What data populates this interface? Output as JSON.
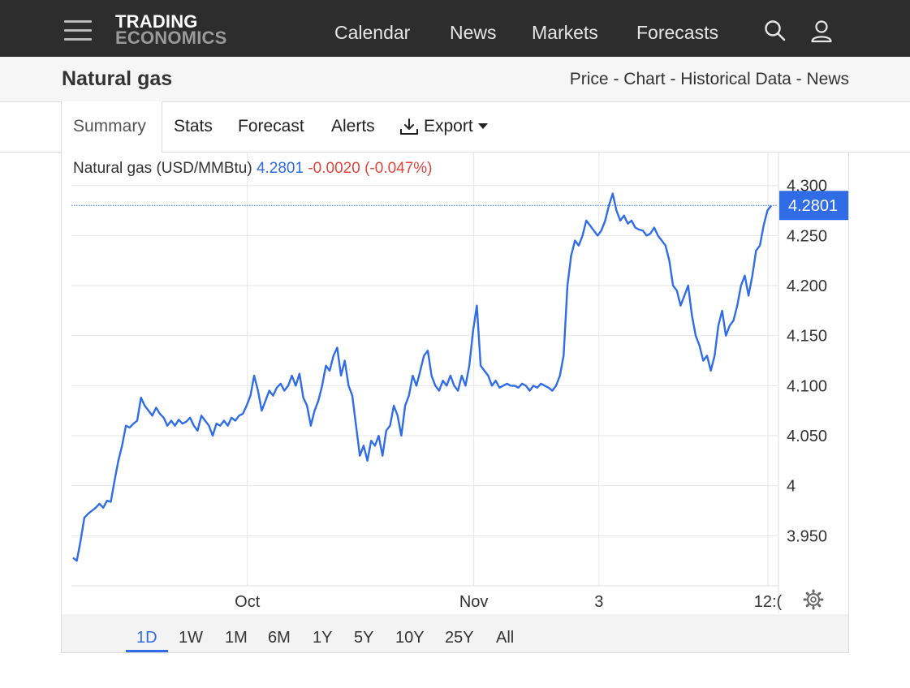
{
  "nav": {
    "logo_line1": "TRADING",
    "logo_line2": "ECONOMICS",
    "links": [
      "Calendar",
      "News",
      "Markets",
      "Forecasts"
    ],
    "icons": [
      "menu-icon",
      "search-icon",
      "user-icon"
    ]
  },
  "header": {
    "title": "Natural gas",
    "breadcrumbs": "Price - Chart - Historical Data - News"
  },
  "tabs": {
    "summary": "Summary",
    "stats": "Stats",
    "forecast": "Forecast",
    "alerts": "Alerts",
    "export": "Export",
    "active": "Summary"
  },
  "legend": {
    "name": "Natural gas (USD/MMBtu)",
    "price": "4.2801",
    "change": "-0.0020 (-0.047%)"
  },
  "ranges": {
    "items": [
      "1D",
      "1W",
      "1M",
      "6M",
      "1Y",
      "5Y",
      "10Y",
      "25Y",
      "All"
    ],
    "active": "1D"
  },
  "colors": {
    "line": "#2f6ce5",
    "negative": "#e0453c",
    "nav_bg": "#2d2d2d"
  },
  "chart_data": {
    "type": "line",
    "title": "",
    "series": [
      {
        "name": "Natural gas (USD/MMBtu)",
        "values": [
          3.928,
          3.925,
          3.945,
          3.968,
          3.972,
          3.975,
          3.978,
          3.982,
          3.978,
          3.985,
          3.984,
          4.005,
          4.025,
          4.04,
          4.06,
          4.058,
          4.062,
          4.065,
          4.088,
          4.08,
          4.075,
          4.07,
          4.078,
          4.072,
          4.068,
          4.06,
          4.065,
          4.06,
          4.066,
          4.062,
          4.064,
          4.068,
          4.06,
          4.055,
          4.07,
          4.065,
          4.06,
          4.05,
          4.062,
          4.06,
          4.065,
          4.06,
          4.068,
          4.065,
          4.07,
          4.072,
          4.08,
          4.09,
          4.11,
          4.095,
          4.075,
          4.085,
          4.095,
          4.09,
          4.098,
          4.102,
          4.095,
          4.1,
          4.11,
          4.1,
          4.112,
          4.088,
          4.08,
          4.06,
          4.075,
          4.085,
          4.1,
          4.12,
          4.115,
          4.13,
          4.138,
          4.11,
          4.125,
          4.1,
          4.09,
          4.06,
          4.03,
          4.04,
          4.025,
          4.045,
          4.04,
          4.05,
          4.03,
          4.055,
          4.06,
          4.08,
          4.07,
          4.05,
          4.08,
          4.09,
          4.11,
          4.1,
          4.115,
          4.13,
          4.135,
          4.11,
          4.1,
          4.095,
          4.105,
          4.1,
          4.11,
          4.1,
          4.095,
          4.11,
          4.1,
          4.12,
          4.155,
          4.18,
          4.12,
          4.115,
          4.11,
          4.1,
          4.105,
          4.098,
          4.1,
          4.102,
          4.1,
          4.1,
          4.098,
          4.102,
          4.1,
          4.095,
          4.1,
          4.098,
          4.102,
          4.1,
          4.098,
          4.095,
          4.1,
          4.11,
          4.13,
          4.2,
          4.23,
          4.245,
          4.24,
          4.25,
          4.265,
          4.26,
          4.255,
          4.25,
          4.255,
          4.265,
          4.28,
          4.292,
          4.275,
          4.265,
          4.27,
          4.262,
          4.265,
          4.258,
          4.256,
          4.255,
          4.25,
          4.252,
          4.258,
          4.25,
          4.245,
          4.24,
          4.225,
          4.2,
          4.195,
          4.18,
          4.19,
          4.2,
          4.17,
          4.15,
          4.14,
          4.125,
          4.13,
          4.115,
          4.13,
          4.16,
          4.175,
          4.15,
          4.16,
          4.165,
          4.18,
          4.2,
          4.21,
          4.19,
          4.21,
          4.235,
          4.24,
          4.26,
          4.275,
          4.28
        ]
      }
    ],
    "x_tick_labels": [
      "Oct",
      "Nov",
      "3",
      "12:("
    ],
    "x_tick_positions": [
      0.2491,
      0.5697,
      0.7469,
      0.9862
    ],
    "y_ticks": [
      3.95,
      4.0,
      4.05,
      4.1,
      4.15,
      4.2,
      4.25,
      4.3
    ],
    "y_tick_labels": [
      "3.950",
      "4",
      "4.050",
      "4.100",
      "4.150",
      "4.200",
      "4.250",
      "4.300"
    ],
    "ylim": [
      3.9,
      4.3
    ],
    "last_value_label": "4.2801",
    "last_value": 4.2801,
    "grid": true,
    "xlabel": "",
    "ylabel": ""
  }
}
